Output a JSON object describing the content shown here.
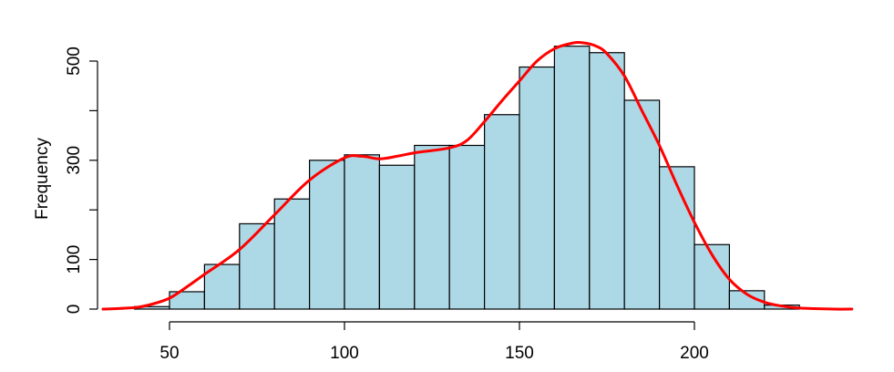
{
  "chart_data": {
    "type": "bar",
    "subtype": "histogram-with-density-curve",
    "title": "",
    "xlabel": "",
    "ylabel": "Frequency",
    "xlim": [
      30,
      245
    ],
    "ylim": [
      0,
      540
    ],
    "x_ticks": [
      50,
      100,
      150,
      200
    ],
    "y_ticks": [
      0,
      100,
      300,
      500
    ],
    "bins": [
      {
        "start": 40,
        "end": 50,
        "value": 5
      },
      {
        "start": 50,
        "end": 60,
        "value": 35
      },
      {
        "start": 60,
        "end": 70,
        "value": 90
      },
      {
        "start": 70,
        "end": 80,
        "value": 172
      },
      {
        "start": 80,
        "end": 90,
        "value": 222
      },
      {
        "start": 90,
        "end": 100,
        "value": 300
      },
      {
        "start": 100,
        "end": 110,
        "value": 311
      },
      {
        "start": 110,
        "end": 120,
        "value": 290
      },
      {
        "start": 120,
        "end": 130,
        "value": 330
      },
      {
        "start": 130,
        "end": 140,
        "value": 330
      },
      {
        "start": 140,
        "end": 150,
        "value": 392
      },
      {
        "start": 150,
        "end": 160,
        "value": 488
      },
      {
        "start": 160,
        "end": 170,
        "value": 530
      },
      {
        "start": 170,
        "end": 180,
        "value": 517
      },
      {
        "start": 180,
        "end": 190,
        "value": 421
      },
      {
        "start": 190,
        "end": 200,
        "value": 287
      },
      {
        "start": 200,
        "end": 210,
        "value": 130
      },
      {
        "start": 210,
        "end": 220,
        "value": 37
      },
      {
        "start": 220,
        "end": 230,
        "value": 8
      }
    ],
    "density_curve": {
      "x": [
        31,
        40,
        45,
        50,
        55,
        60,
        70,
        80,
        90,
        100,
        105,
        110,
        115,
        120,
        130,
        135,
        140,
        145,
        150,
        155,
        160,
        165,
        168,
        172,
        175,
        180,
        185,
        190,
        195,
        200,
        205,
        210,
        215,
        220,
        225,
        230,
        240,
        245
      ],
      "y": [
        0,
        3,
        10,
        22,
        45,
        70,
        120,
        190,
        260,
        305,
        308,
        303,
        308,
        315,
        325,
        340,
        378,
        420,
        460,
        500,
        525,
        536,
        537,
        530,
        515,
        470,
        400,
        330,
        250,
        175,
        110,
        60,
        30,
        14,
        6,
        2,
        0,
        0
      ]
    },
    "colors": {
      "bar_fill": "#add8e6",
      "bar_stroke": "#000000",
      "curve": "#ff0000"
    },
    "grid": false,
    "legend": "none"
  }
}
